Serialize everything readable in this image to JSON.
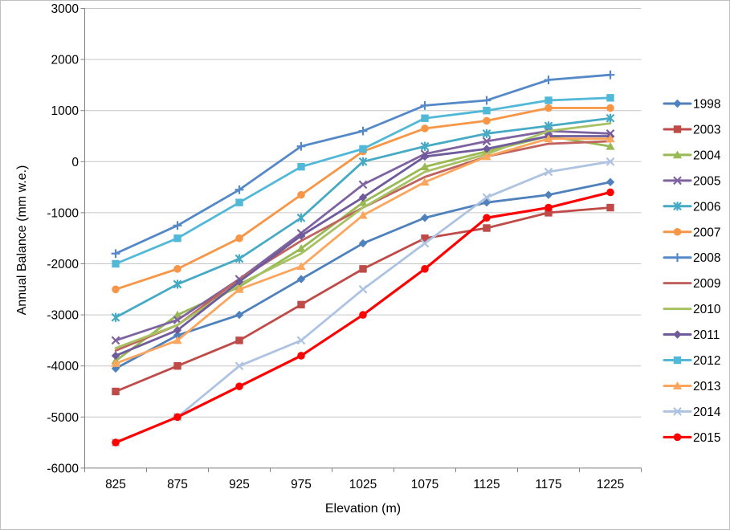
{
  "chart_data": {
    "type": "line",
    "title": "",
    "xlabel": "Elevation (m)",
    "ylabel": "Annual Balance (mm w.e.)",
    "x_categories": [
      "825",
      "875",
      "925",
      "975",
      "1025",
      "1075",
      "1125",
      "1175",
      "1225"
    ],
    "ylim": [
      -6000,
      3000
    ],
    "ytick_step": 1000,
    "ytick_labels": [
      "3000",
      "2000",
      "1000",
      "0",
      "-1000",
      "-2000",
      "-3000",
      "-4000",
      "-5000",
      "-6000"
    ],
    "grid": true,
    "legend_position": "right",
    "axis_color": "#808080",
    "gridline_color": "#c6c6c6",
    "text_color": "#000000",
    "series": [
      {
        "name": "1998",
        "color": "#4F81BD",
        "marker": "diamond",
        "values": [
          -4050,
          -3400,
          -3000,
          -2300,
          -1600,
          -1100,
          -800,
          -650,
          -400
        ]
      },
      {
        "name": "2003",
        "color": "#BE4B48",
        "marker": "square",
        "values": [
          -4500,
          -4000,
          -3500,
          -2800,
          -2100,
          -1500,
          -1300,
          -1000,
          -900
        ]
      },
      {
        "name": "2004",
        "color": "#98B954",
        "marker": "triangle",
        "values": [
          -3900,
          -3000,
          -2450,
          -1700,
          -800,
          -100,
          200,
          500,
          300
        ]
      },
      {
        "name": "2005",
        "color": "#7F63A1",
        "marker": "x",
        "values": [
          -3500,
          -3100,
          -2300,
          -1400,
          -450,
          150,
          400,
          600,
          550
        ]
      },
      {
        "name": "2006",
        "color": "#46AAC5",
        "marker": "star",
        "values": [
          -3050,
          -2400,
          -1900,
          -1100,
          0,
          300,
          550,
          700,
          850
        ]
      },
      {
        "name": "2007",
        "color": "#F79646",
        "marker": "circle",
        "values": [
          -2500,
          -2100,
          -1500,
          -650,
          200,
          650,
          800,
          1050,
          1050
        ]
      },
      {
        "name": "2008",
        "color": "#5488C7",
        "marker": "plus",
        "values": [
          -1800,
          -1250,
          -550,
          300,
          600,
          1100,
          1200,
          1600,
          1700
        ]
      },
      {
        "name": "2009",
        "color": "#C0625E",
        "marker": "none",
        "values": [
          -3700,
          -3200,
          -2300,
          -1550,
          -900,
          -300,
          100,
          350,
          400
        ]
      },
      {
        "name": "2010",
        "color": "#A8C162",
        "marker": "none",
        "values": [
          -3650,
          -3200,
          -2400,
          -1800,
          -900,
          -200,
          150,
          600,
          750
        ]
      },
      {
        "name": "2011",
        "color": "#6F5B9C",
        "marker": "diamond",
        "values": [
          -3800,
          -3300,
          -2350,
          -1450,
          -700,
          100,
          250,
          500,
          500
        ]
      },
      {
        "name": "2012",
        "color": "#52B8D8",
        "marker": "square",
        "values": [
          -2000,
          -1500,
          -800,
          -100,
          250,
          850,
          1000,
          1200,
          1250
        ]
      },
      {
        "name": "2013",
        "color": "#FBA55D",
        "marker": "triangle",
        "values": [
          -3950,
          -3500,
          -2500,
          -2050,
          -1050,
          -400,
          100,
          450,
          450
        ]
      },
      {
        "name": "2014",
        "color": "#AEC3E2",
        "marker": "x",
        "values": [
          -5500,
          -5000,
          -4000,
          -3500,
          -2500,
          -1600,
          -700,
          -200,
          0
        ]
      },
      {
        "name": "2015",
        "color": "#FF0000",
        "marker": "circle",
        "values": [
          -5500,
          -5000,
          -4400,
          -3800,
          -3000,
          -2100,
          -1100,
          -900,
          -600
        ]
      }
    ]
  }
}
